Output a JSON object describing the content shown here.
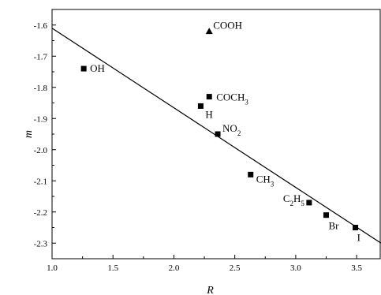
{
  "chart_data": {
    "type": "scatter",
    "xlabel": "R",
    "ylabel": "m",
    "xlim": [
      1.0,
      3.7
    ],
    "ylim": [
      -2.35,
      -1.55
    ],
    "x_ticks": [
      "1.0",
      "1.5",
      "2.0",
      "2.5",
      "3.0",
      "3.5"
    ],
    "y_ticks": [
      "-1.6",
      "-1.7",
      "-1.8",
      "-1.9",
      "-2.0",
      "-2.1",
      "-2.2",
      "-2.3"
    ],
    "grid": false,
    "points": [
      {
        "label": "OH",
        "x": 1.26,
        "y": -1.74,
        "marker": "square"
      },
      {
        "label": "COOH",
        "x": 2.29,
        "y": -1.62,
        "marker": "triangle"
      },
      {
        "label": "COCH3",
        "x": 2.29,
        "y": -1.83,
        "marker": "square"
      },
      {
        "label": "H",
        "x": 2.22,
        "y": -1.86,
        "marker": "square"
      },
      {
        "label": "NO2",
        "x": 2.36,
        "y": -1.95,
        "marker": "square"
      },
      {
        "label": "CH3",
        "x": 2.63,
        "y": -2.08,
        "marker": "square"
      },
      {
        "label": "C2H5",
        "x": 3.11,
        "y": -2.17,
        "marker": "square"
      },
      {
        "label": "Br",
        "x": 3.25,
        "y": -2.21,
        "marker": "square"
      },
      {
        "label": "I",
        "x": 3.49,
        "y": -2.25,
        "marker": "square"
      }
    ],
    "fit_line": {
      "x": [
        1.0,
        3.7
      ],
      "y": [
        -1.61,
        -2.3
      ]
    }
  }
}
